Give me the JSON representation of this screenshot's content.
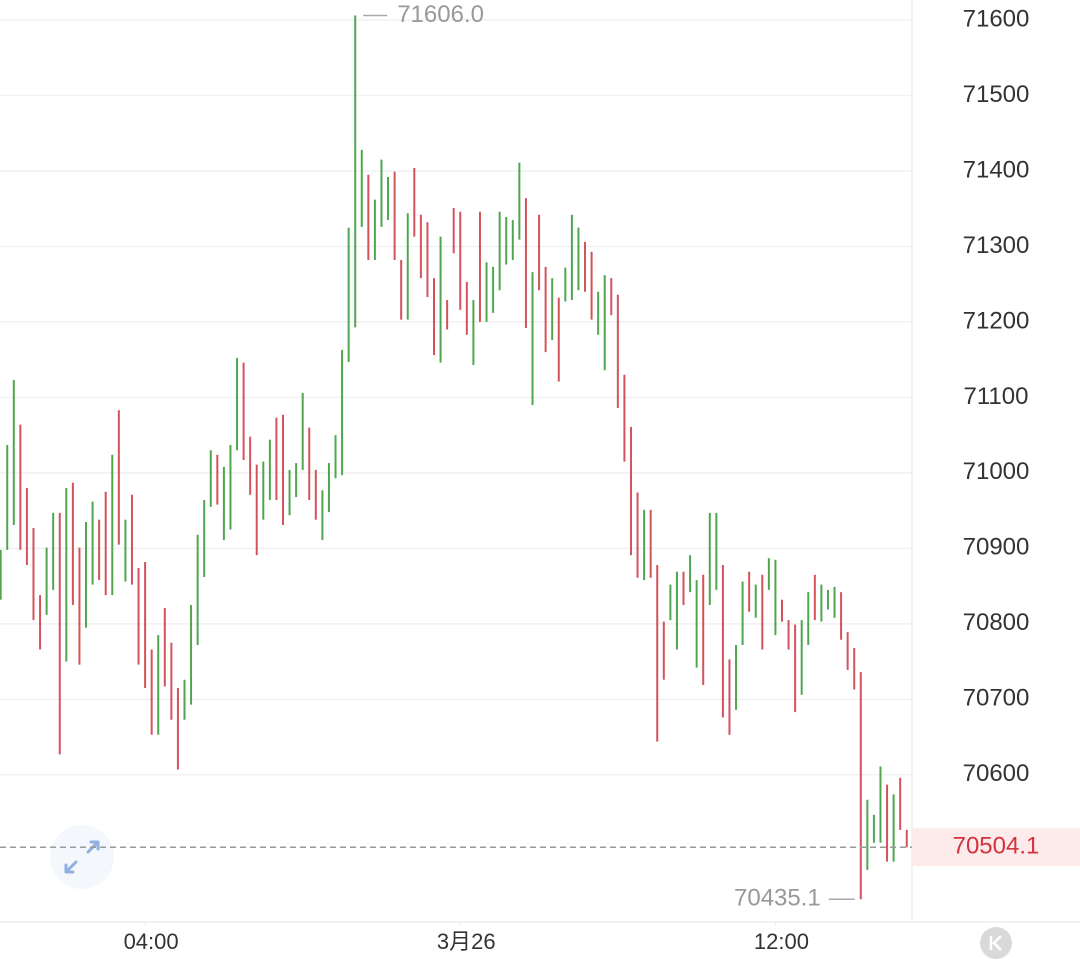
{
  "chart_data": {
    "type": "ohlc",
    "x": [
      130,
      135,
      140,
      145,
      150,
      155,
      160,
      165,
      170,
      175,
      180,
      185,
      190,
      195,
      200,
      205,
      210,
      215,
      220,
      225,
      230,
      235,
      240,
      245,
      250,
      255,
      260,
      265,
      270,
      275,
      280,
      285,
      290,
      295,
      300,
      305,
      310,
      315,
      320,
      325,
      330,
      335,
      340,
      345,
      350,
      355,
      360,
      365,
      370,
      375,
      380,
      385,
      390,
      395,
      400,
      405,
      410,
      415,
      420,
      425,
      430,
      435,
      440,
      445,
      450,
      455,
      460,
      465,
      470,
      475,
      480,
      485,
      490,
      495,
      500,
      505,
      510,
      515,
      520,
      525,
      530,
      535,
      540,
      545,
      550,
      555,
      560,
      565,
      570,
      575,
      580,
      585,
      590,
      595,
      600,
      605,
      610,
      615,
      620,
      625,
      630,
      635,
      640,
      645,
      650,
      655,
      660,
      665,
      670,
      675,
      680,
      685,
      690,
      695,
      700,
      705,
      710,
      715,
      720,
      725,
      730,
      735,
      740,
      745,
      750,
      755,
      760,
      765,
      770,
      775,
      780,
      785,
      790,
      795,
      800,
      805,
      810,
      815,
      820
    ],
    "open": [
      70832,
      70898,
      70931,
      71064,
      70980,
      70927,
      70838,
      70812,
      70845,
      70947,
      70750,
      70987,
      70901,
      70795,
      70852,
      70938,
      70975,
      70838,
      71083,
      70856,
      70971,
      70874,
      70882,
      70766,
      70653,
      70821,
      70775,
      70715,
      70673,
      70693,
      70772,
      70862,
      70955,
      71024,
      70911,
      70925,
      71030,
      71146,
      71048,
      71011,
      70938,
      70964,
      71073,
      71077,
      70944,
      70968,
      71004,
      71060,
      71004,
      70911,
      70948,
      70993,
      70997,
      71147,
      71193,
      71326,
      71395,
      71282,
      71326,
      71335,
      71399,
      71282,
      71203,
      71404,
      71342,
      71332,
      71258,
      71146,
      71229,
      71351,
      71346,
      71253,
      71143,
      71346,
      71200,
      71212,
      71242,
      71276,
      71282,
      71309,
      71364,
      71090,
      71342,
      71273,
      71176,
      71232,
      71227,
      71229,
      71242,
      71306,
      71293,
      71183,
      71136,
      71258,
      71236,
      71130,
      71061,
      70974,
      70858,
      70951,
      70878,
      70803,
      70805,
      70766,
      70869,
      70842,
      70742,
      70865,
      70825,
      70845,
      70878,
      70753,
      70686,
      70772,
      70869,
      70808,
      70865,
      70845,
      70785,
      70832,
      70805,
      70799,
      70706,
      70772,
      70865,
      70803,
      70819,
      70808,
      70842,
      70789,
      70768,
      70736,
      70474,
      70510,
      70510,
      70587,
      70485,
      70596,
      70527
    ],
    "close": [
      70898,
      71037,
      71123,
      70898,
      70878,
      70805,
      70766,
      70901,
      70947,
      70627,
      70980,
      70825,
      70746,
      70935,
      70962,
      70858,
      70838,
      71024,
      70905,
      70938,
      70852,
      70746,
      70715,
      70653,
      70785,
      70717,
      70673,
      70607,
      70726,
      70825,
      70918,
      70964,
      71030,
      70958,
      71008,
      71037,
      71152,
      71017,
      70971,
      70891,
      71015,
      71044,
      70964,
      70931,
      71004,
      71013,
      71106,
      70964,
      70938,
      70977,
      71013,
      71050,
      71163,
      71325,
      71606,
      71428,
      71282,
      71362,
      71415,
      71392,
      71282,
      71203,
      71344,
      71313,
      71258,
      71233,
      71156,
      71313,
      71190,
      71291,
      71216,
      71183,
      71229,
      71200,
      71279,
      71273,
      71346,
      71339,
      71335,
      71411,
      71192,
      71266,
      71242,
      71160,
      71258,
      71121,
      71272,
      71342,
      71325,
      71240,
      71203,
      71240,
      71262,
      71209,
      71086,
      71015,
      70891,
      70861,
      70951,
      70861,
      70644,
      70726,
      70852,
      70869,
      70825,
      70891,
      70858,
      70719,
      70947,
      70947,
      70676,
      70653,
      70772,
      70856,
      70816,
      70852,
      70766,
      70887,
      70885,
      70803,
      70766,
      70683,
      70805,
      70842,
      70805,
      70852,
      70845,
      70849,
      70779,
      70739,
      70713,
      70435.1,
      70567,
      70547,
      70611,
      70485,
      70574,
      70527,
      70504.1
    ],
    "up_color": "#4fa64f",
    "down_color": "#d4525b",
    "xlim": [
      129.5,
      824
    ],
    "xticks": [
      {
        "value": 240,
        "label": "04:00"
      },
      {
        "value": 480,
        "label": "3月26"
      },
      {
        "value": 720,
        "label": "12:00"
      }
    ],
    "ylim": [
      70405,
      71626.5
    ],
    "yticks": [
      70600,
      70700,
      70800,
      70900,
      71000,
      71100,
      71200,
      71300,
      71400,
      71500,
      71600
    ],
    "grid": true,
    "high": {
      "value": 71606,
      "label": "71606.0"
    },
    "low": {
      "value": 70435.1,
      "label": "70435.1"
    },
    "last_price": 70504.1
  }
}
